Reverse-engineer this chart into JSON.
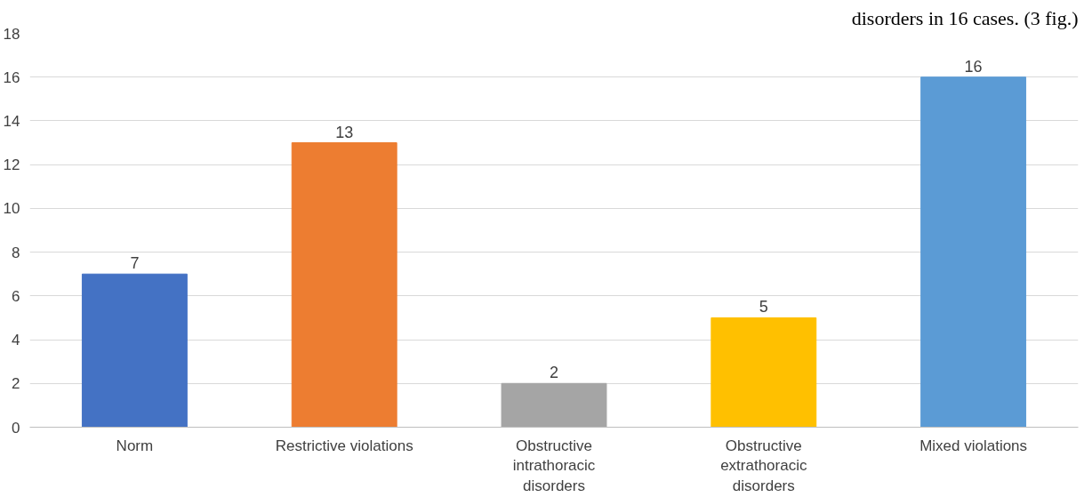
{
  "chart_data": {
    "type": "bar",
    "categories": [
      "Norm",
      "Restrictive violations",
      "Obstructive intrathoracic disorders",
      "Obstructive extrathoracic disorders",
      "Mixed violations"
    ],
    "values": [
      7,
      13,
      2,
      5,
      16
    ],
    "colors": [
      "#4472c4",
      "#ed7d31",
      "#a5a5a5",
      "#ffc000",
      "#5b9bd5"
    ],
    "ylim": [
      0,
      18
    ],
    "yticks": [
      0,
      2,
      4,
      6,
      8,
      10,
      12,
      14,
      16,
      18
    ],
    "grid": "y",
    "data_labels": true,
    "annotations": [
      "disorders in 16 cases. (3 fig.)"
    ]
  }
}
